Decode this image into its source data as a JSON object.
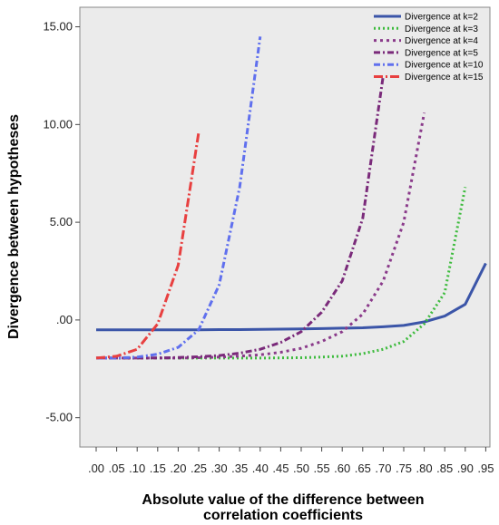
{
  "chart_data": {
    "type": "line",
    "xlabel_lines": [
      "Absolute value of the difference between",
      "correlation coefficients"
    ],
    "ylabel": "Divergence between hypotheses",
    "x_categories": [
      ".00",
      ".05",
      ".10",
      ".15",
      ".20",
      ".25",
      ".30",
      ".35",
      ".40",
      ".45",
      ".50",
      ".55",
      ".60",
      ".65",
      ".70",
      ".75",
      ".80",
      ".85",
      ".90",
      ".95"
    ],
    "y_ticks": [
      "15.00",
      "10.00",
      "5.00",
      ".00",
      "-5.00"
    ],
    "y_tick_values": [
      15,
      10,
      5,
      0,
      -5
    ],
    "ylim": [
      -6.5,
      16
    ],
    "grid": false,
    "legend_position": "top-right",
    "plot_background": "#ebebeb",
    "series": [
      {
        "name": "Divergence at k=2",
        "color": "#3b55a8",
        "dash": "solid",
        "x": [
          0,
          0.05,
          0.1,
          0.15,
          0.2,
          0.25,
          0.3,
          0.35,
          0.4,
          0.45,
          0.5,
          0.55,
          0.6,
          0.65,
          0.7,
          0.75,
          0.8,
          0.85,
          0.9,
          0.95
        ],
        "y": [
          -0.5,
          -0.5,
          -0.5,
          -0.5,
          -0.5,
          -0.5,
          -0.49,
          -0.49,
          -0.48,
          -0.47,
          -0.46,
          -0.44,
          -0.42,
          -0.4,
          -0.35,
          -0.28,
          -0.1,
          0.2,
          0.8,
          2.9
        ]
      },
      {
        "name": "Divergence at k=3",
        "color": "#3dbb3d",
        "dash": "dot",
        "x": [
          0,
          0.05,
          0.1,
          0.15,
          0.2,
          0.25,
          0.3,
          0.35,
          0.4,
          0.45,
          0.5,
          0.55,
          0.6,
          0.65,
          0.7,
          0.75,
          0.8,
          0.85,
          0.9
        ],
        "y": [
          -1.95,
          -1.95,
          -1.95,
          -1.95,
          -1.95,
          -1.95,
          -1.95,
          -1.95,
          -1.95,
          -1.94,
          -1.93,
          -1.9,
          -1.85,
          -1.72,
          -1.5,
          -1.1,
          -0.2,
          1.4,
          6.8
        ]
      },
      {
        "name": "Divergence at k=4",
        "color": "#8a3a8a",
        "dash": "short-dot",
        "x": [
          0,
          0.05,
          0.1,
          0.15,
          0.2,
          0.25,
          0.3,
          0.35,
          0.4,
          0.45,
          0.5,
          0.55,
          0.6,
          0.65,
          0.7,
          0.75,
          0.8
        ],
        "y": [
          -1.95,
          -1.95,
          -1.95,
          -1.95,
          -1.95,
          -1.93,
          -1.9,
          -1.85,
          -1.78,
          -1.65,
          -1.45,
          -1.1,
          -0.6,
          0.3,
          2.0,
          5.0,
          10.6
        ]
      },
      {
        "name": "Divergence at k=5",
        "color": "#7a2a7a",
        "dash": "dash-dot",
        "x": [
          0,
          0.05,
          0.1,
          0.15,
          0.2,
          0.25,
          0.3,
          0.35,
          0.4,
          0.45,
          0.5,
          0.55,
          0.6,
          0.65,
          0.7
        ],
        "y": [
          -1.95,
          -1.95,
          -1.95,
          -1.94,
          -1.92,
          -1.88,
          -1.82,
          -1.7,
          -1.5,
          -1.15,
          -0.6,
          0.4,
          2.0,
          5.2,
          12.5
        ]
      },
      {
        "name": "Divergence at k=10",
        "color": "#6070ee",
        "dash": "dash-dot",
        "x": [
          0,
          0.05,
          0.1,
          0.15,
          0.2,
          0.25,
          0.3,
          0.35,
          0.4
        ],
        "y": [
          -1.95,
          -1.95,
          -1.9,
          -1.75,
          -1.4,
          -0.5,
          1.8,
          6.8,
          14.5
        ]
      },
      {
        "name": "Divergence at k=15",
        "color": "#e84040",
        "dash": "long-dash-dot",
        "x": [
          0,
          0.05,
          0.1,
          0.15,
          0.2,
          0.25
        ],
        "y": [
          -1.95,
          -1.85,
          -1.5,
          -0.2,
          2.8,
          9.6
        ]
      }
    ]
  }
}
